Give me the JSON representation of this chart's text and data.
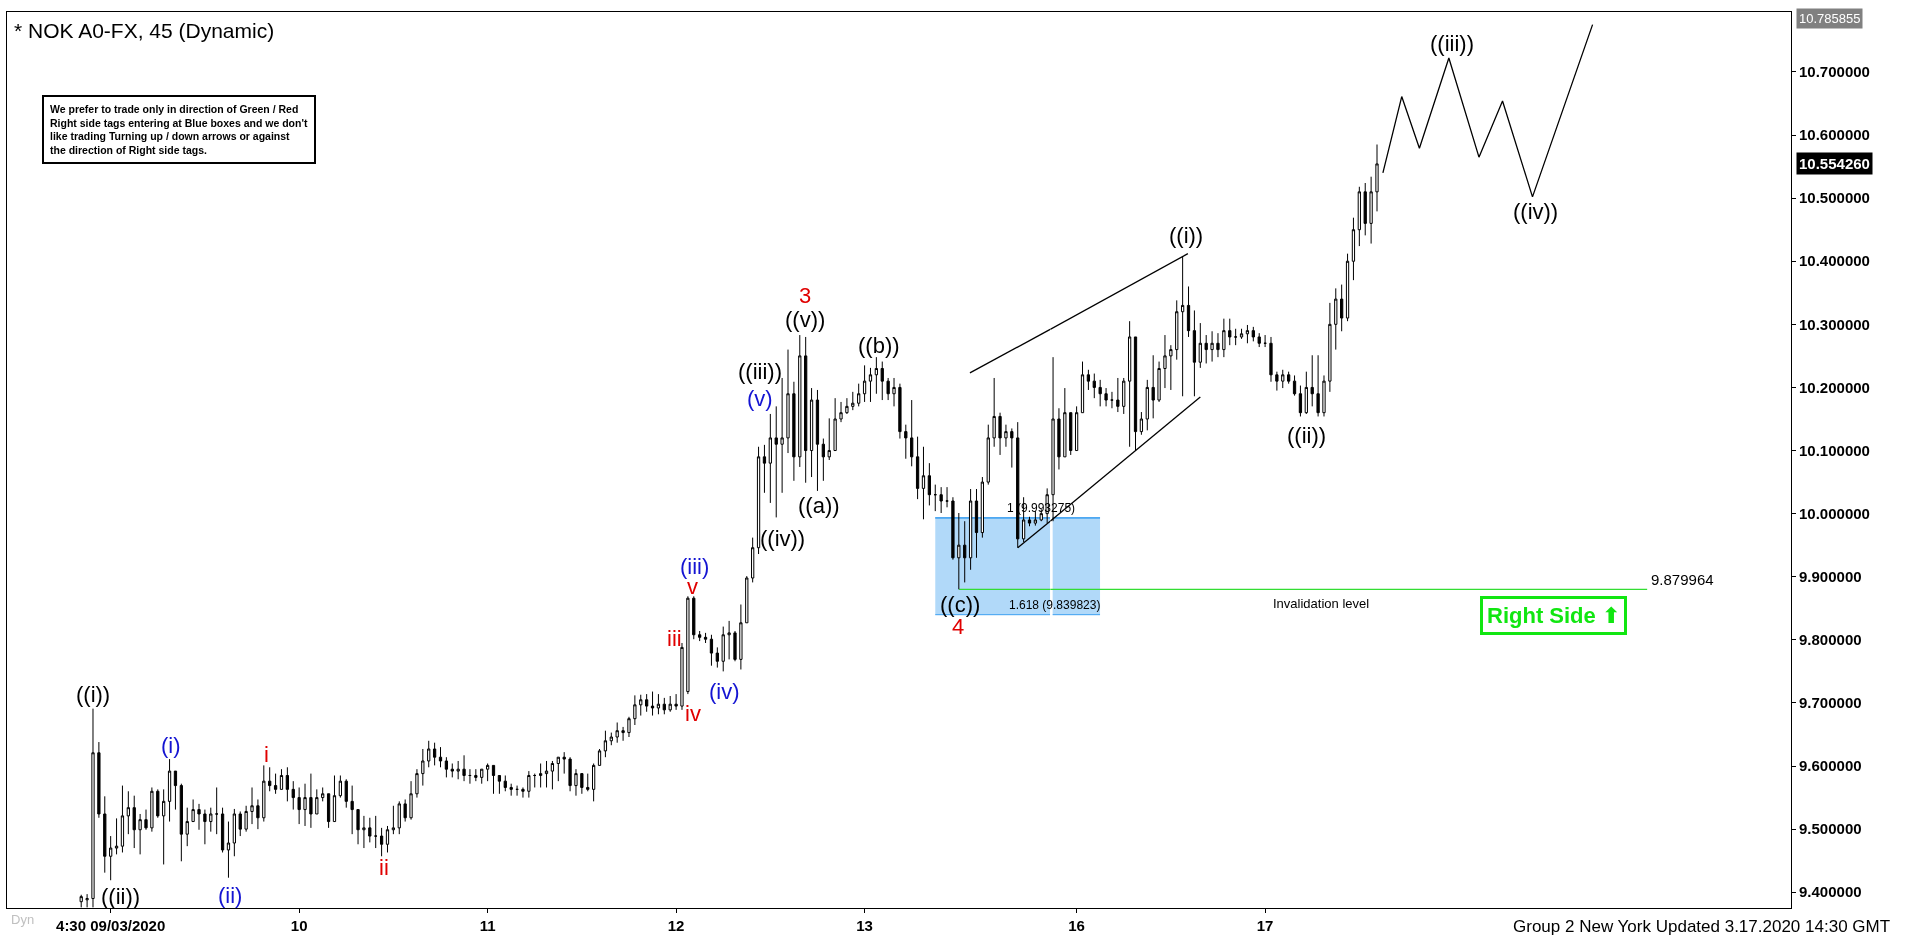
{
  "chart_data": [
    {
      "type": "candlestick",
      "title": "* NOK A0-FX, 45 (Dynamic)",
      "color": "#000000",
      "tick_labels": "x",
      "x": [
        "2020-03-09T00:45",
        "2020-03-09T01:30",
        "2020-03-09T02:15",
        "2020-03-09T03:00",
        "2020-03-09T03:45",
        "2020-03-09T04:30",
        "2020-03-09T05:15",
        "2020-03-09T06:00",
        "2020-03-09T06:45",
        "2020-03-09T07:30",
        "2020-03-09T08:15",
        "2020-03-09T09:00",
        "2020-03-09T09:45",
        "2020-03-09T10:30",
        "2020-03-09T11:15",
        "2020-03-09T12:00",
        "2020-03-09T12:45",
        "2020-03-09T13:30",
        "2020-03-09T14:15",
        "2020-03-09T15:00",
        "2020-03-09T15:45",
        "2020-03-09T16:30",
        "2020-03-09T17:15",
        "2020-03-09T18:00",
        "2020-03-09T18:45",
        "2020-03-09T19:30",
        "2020-03-09T20:15",
        "2020-03-09T21:00",
        "2020-03-09T21:45",
        "2020-03-09T22:30",
        "2020-03-09T23:15",
        "2020-03-10T00:00",
        "2020-03-10T00:45",
        "2020-03-10T01:30",
        "2020-03-10T02:15",
        "2020-03-10T03:00",
        "2020-03-10T03:45",
        "2020-03-10T04:30",
        "2020-03-10T05:15",
        "2020-03-10T06:00",
        "2020-03-10T06:45",
        "2020-03-10T07:30",
        "2020-03-10T08:15",
        "2020-03-10T09:00",
        "2020-03-10T09:45",
        "2020-03-10T10:30",
        "2020-03-10T11:15",
        "2020-03-10T12:00",
        "2020-03-10T12:45",
        "2020-03-10T13:30",
        "2020-03-10T14:15",
        "2020-03-10T15:00",
        "2020-03-10T15:45",
        "2020-03-10T16:30",
        "2020-03-10T17:15",
        "2020-03-10T18:00",
        "2020-03-10T18:45",
        "2020-03-10T19:30",
        "2020-03-10T20:15",
        "2020-03-10T21:00",
        "2020-03-10T21:45",
        "2020-03-10T22:30",
        "2020-03-10T23:15",
        "2020-03-11T00:00",
        "2020-03-11T00:45",
        "2020-03-11T01:30",
        "2020-03-11T02:15",
        "2020-03-11T03:00",
        "2020-03-11T03:45",
        "2020-03-11T04:30",
        "2020-03-11T05:15",
        "2020-03-11T06:00",
        "2020-03-11T06:45",
        "2020-03-11T07:30",
        "2020-03-11T08:15",
        "2020-03-11T09:00",
        "2020-03-11T09:45",
        "2020-03-11T10:30",
        "2020-03-11T11:15",
        "2020-03-11T12:00",
        "2020-03-11T12:45",
        "2020-03-11T13:30",
        "2020-03-11T14:15",
        "2020-03-11T15:00",
        "2020-03-11T15:45",
        "2020-03-11T16:30",
        "2020-03-11T17:15",
        "2020-03-11T18:00",
        "2020-03-11T18:45",
        "2020-03-11T19:30",
        "2020-03-11T20:15",
        "2020-03-11T21:00",
        "2020-03-11T21:45",
        "2020-03-11T22:30",
        "2020-03-11T23:15",
        "2020-03-12T00:00",
        "2020-03-12T00:45",
        "2020-03-12T01:30",
        "2020-03-12T02:15",
        "2020-03-12T03:00",
        "2020-03-12T03:45",
        "2020-03-12T04:30",
        "2020-03-12T05:15",
        "2020-03-12T06:00",
        "2020-03-12T06:45",
        "2020-03-12T07:30",
        "2020-03-12T08:15",
        "2020-03-12T09:00",
        "2020-03-12T09:45",
        "2020-03-12T10:30",
        "2020-03-12T11:15",
        "2020-03-12T12:00",
        "2020-03-12T12:45",
        "2020-03-12T13:30",
        "2020-03-12T14:15",
        "2020-03-12T15:00",
        "2020-03-12T15:45",
        "2020-03-12T16:30",
        "2020-03-12T17:15",
        "2020-03-12T18:00",
        "2020-03-12T18:45",
        "2020-03-12T19:30",
        "2020-03-12T20:15",
        "2020-03-12T21:00",
        "2020-03-12T21:45",
        "2020-03-12T22:30",
        "2020-03-12T23:15",
        "2020-03-13T00:00",
        "2020-03-13T00:45",
        "2020-03-13T01:30",
        "2020-03-13T02:15",
        "2020-03-13T03:00",
        "2020-03-13T03:45",
        "2020-03-13T04:30",
        "2020-03-13T05:15",
        "2020-03-13T06:00",
        "2020-03-13T06:45",
        "2020-03-13T07:30",
        "2020-03-13T08:15",
        "2020-03-13T09:00",
        "2020-03-13T09:45",
        "2020-03-13T10:30",
        "2020-03-13T11:15",
        "2020-03-13T12:00",
        "2020-03-13T12:45",
        "2020-03-13T13:30",
        "2020-03-13T14:15",
        "2020-03-13T15:00",
        "2020-03-13T15:45",
        "2020-03-13T16:30",
        "2020-03-13T17:15",
        "2020-03-13T18:00",
        "2020-03-13T18:45",
        "2020-03-13T19:30",
        "2020-03-13T20:15",
        "2020-03-13T21:00",
        "2020-03-13T21:45",
        "2020-03-13T22:30",
        "2020-03-13T23:15",
        "2020-03-14T00:00",
        "2020-03-14T00:45",
        "2020-03-14T01:30",
        "2020-03-14T02:15",
        "2020-03-14T03:00",
        "2020-03-14T03:45"
      ],
      "ohlc": [
        [
          9.385,
          9.396,
          9.376,
          9.393
        ],
        [
          9.388,
          9.397,
          9.376,
          9.39
        ],
        [
          9.39,
          9.691,
          9.376,
          9.621
        ],
        [
          9.621,
          9.638,
          9.518,
          9.524
        ],
        [
          9.524,
          9.552,
          9.431,
          9.457
        ],
        [
          9.457,
          9.489,
          9.419,
          9.47
        ],
        [
          9.47,
          9.517,
          9.46,
          9.473
        ],
        [
          9.473,
          9.569,
          9.463,
          9.521
        ],
        [
          9.521,
          9.56,
          9.492,
          9.534
        ],
        [
          9.534,
          9.553,
          9.47,
          9.499
        ],
        [
          9.499,
          9.524,
          9.46,
          9.515
        ],
        [
          9.515,
          9.531,
          9.499,
          9.502
        ],
        [
          9.502,
          9.566,
          9.496,
          9.56
        ],
        [
          9.56,
          9.563,
          9.518,
          9.521
        ],
        [
          9.521,
          9.563,
          9.444,
          9.544
        ],
        [
          9.544,
          9.611,
          9.512,
          9.592
        ],
        [
          9.592,
          9.592,
          9.531,
          9.569
        ],
        [
          9.569,
          9.572,
          9.449,
          9.492
        ],
        [
          9.492,
          9.534,
          9.473,
          9.512
        ],
        [
          9.512,
          9.547,
          9.512,
          9.531
        ],
        [
          9.531,
          9.54,
          9.499,
          9.524
        ],
        [
          9.524,
          9.531,
          9.476,
          9.512
        ],
        [
          9.512,
          9.534,
          9.496,
          9.524
        ],
        [
          9.524,
          9.566,
          9.492,
          9.524
        ],
        [
          9.524,
          9.534,
          9.463,
          9.467
        ],
        [
          9.467,
          9.512,
          9.423,
          9.478
        ],
        [
          9.478,
          9.532,
          9.457,
          9.524
        ],
        [
          9.524,
          9.528,
          9.489,
          9.5
        ],
        [
          9.5,
          9.537,
          9.496,
          9.528
        ],
        [
          9.528,
          9.566,
          9.508,
          9.537
        ],
        [
          9.537,
          9.547,
          9.5,
          9.518
        ],
        [
          9.518,
          9.601,
          9.512,
          9.576
        ],
        [
          9.576,
          9.598,
          9.56,
          9.569
        ],
        [
          9.569,
          9.588,
          9.556,
          9.563
        ],
        [
          9.563,
          9.595,
          9.563,
          9.585
        ],
        [
          9.585,
          9.598,
          9.544,
          9.563
        ],
        [
          9.563,
          9.576,
          9.531,
          9.55
        ],
        [
          9.55,
          9.566,
          9.508,
          9.531
        ],
        [
          9.531,
          9.572,
          9.505,
          9.55
        ],
        [
          9.55,
          9.588,
          9.502,
          9.524
        ],
        [
          9.524,
          9.563,
          9.524,
          9.55
        ],
        [
          9.55,
          9.566,
          9.544,
          9.556
        ],
        [
          9.556,
          9.556,
          9.502,
          9.512
        ],
        [
          9.512,
          9.585,
          9.512,
          9.553
        ],
        [
          9.553,
          9.585,
          9.55,
          9.576
        ],
        [
          9.576,
          9.579,
          9.534,
          9.544
        ],
        [
          9.544,
          9.569,
          9.492,
          9.531
        ],
        [
          9.531,
          9.531,
          9.476,
          9.499
        ],
        [
          9.499,
          9.521,
          9.47,
          9.502
        ],
        [
          9.502,
          9.518,
          9.479,
          9.489
        ],
        [
          9.489,
          9.521,
          9.47,
          9.489
        ],
        [
          9.489,
          9.502,
          9.457,
          9.476
        ],
        [
          9.476,
          9.505,
          9.463,
          9.499
        ],
        [
          9.499,
          9.537,
          9.492,
          9.502
        ],
        [
          9.502,
          9.544,
          9.492,
          9.54
        ],
        [
          9.54,
          9.547,
          9.512,
          9.518
        ],
        [
          9.518,
          9.576,
          9.515,
          9.556
        ],
        [
          9.556,
          9.595,
          9.55,
          9.588
        ],
        [
          9.588,
          9.627,
          9.569,
          9.608
        ],
        [
          9.608,
          9.64,
          9.598,
          9.627
        ],
        [
          9.627,
          9.637,
          9.601,
          9.614
        ],
        [
          9.614,
          9.63,
          9.598,
          9.608
        ],
        [
          9.608,
          9.614,
          9.582,
          9.595
        ],
        [
          9.595,
          9.604,
          9.582,
          9.592
        ],
        [
          9.592,
          9.608,
          9.579,
          9.595
        ],
        [
          9.595,
          9.617,
          9.576,
          9.585
        ],
        [
          9.585,
          9.595,
          9.572,
          9.585
        ],
        [
          9.585,
          9.595,
          9.576,
          9.582
        ],
        [
          9.582,
          9.595,
          9.572,
          9.595
        ],
        [
          9.595,
          9.604,
          9.576,
          9.601
        ],
        [
          9.601,
          9.601,
          9.556,
          9.585
        ],
        [
          9.585,
          9.585,
          9.556,
          9.576
        ],
        [
          9.576,
          9.585,
          9.56,
          9.566
        ],
        [
          9.566,
          9.572,
          9.553,
          9.563
        ],
        [
          9.563,
          9.569,
          9.553,
          9.563
        ],
        [
          9.563,
          9.566,
          9.55,
          9.56
        ],
        [
          9.56,
          9.592,
          9.55,
          9.585
        ],
        [
          9.585,
          9.588,
          9.566,
          9.585
        ],
        [
          9.585,
          9.604,
          9.566,
          9.588
        ],
        [
          9.588,
          9.608,
          9.566,
          9.592
        ],
        [
          9.592,
          9.608,
          9.563,
          9.604
        ],
        [
          9.604,
          9.614,
          9.576,
          9.614
        ],
        [
          9.614,
          9.622,
          9.588,
          9.611
        ],
        [
          9.611,
          9.614,
          9.56,
          9.569
        ],
        [
          9.569,
          9.595,
          9.553,
          9.588
        ],
        [
          9.588,
          9.588,
          9.556,
          9.566
        ],
        [
          9.566,
          9.588,
          9.56,
          9.563
        ],
        [
          9.563,
          9.604,
          9.544,
          9.601
        ],
        [
          9.601,
          9.627,
          9.601,
          9.624
        ],
        [
          9.624,
          9.656,
          9.614,
          9.64
        ],
        [
          9.64,
          9.653,
          9.633,
          9.646
        ],
        [
          9.646,
          9.669,
          9.637,
          9.656
        ],
        [
          9.656,
          9.662,
          9.64,
          9.653
        ],
        [
          9.653,
          9.678,
          9.646,
          9.675
        ],
        [
          9.675,
          9.712,
          9.665,
          9.697
        ],
        [
          9.697,
          9.713,
          9.68,
          9.705
        ],
        [
          9.705,
          9.714,
          9.686,
          9.695
        ],
        [
          9.695,
          9.718,
          9.68,
          9.692
        ],
        [
          9.692,
          9.714,
          9.682,
          9.698
        ],
        [
          9.698,
          9.708,
          9.682,
          9.689
        ],
        [
          9.689,
          9.711,
          9.686,
          9.698
        ],
        [
          9.698,
          9.714,
          9.689,
          9.695
        ],
        [
          9.695,
          9.795,
          9.689,
          9.788
        ],
        [
          9.718,
          9.869,
          9.714,
          9.866
        ],
        [
          9.866,
          9.869,
          9.801,
          9.808
        ],
        [
          9.808,
          9.814,
          9.798,
          9.804
        ],
        [
          9.804,
          9.811,
          9.795,
          9.801
        ],
        [
          9.801,
          9.808,
          9.759,
          9.779
        ],
        [
          9.779,
          9.788,
          9.756,
          9.766
        ],
        [
          9.766,
          9.821,
          9.75,
          9.808
        ],
        [
          9.808,
          9.83,
          9.769,
          9.811
        ],
        [
          9.811,
          9.814,
          9.766,
          9.769
        ],
        [
          9.769,
          9.856,
          9.753,
          9.827
        ],
        [
          9.827,
          9.901,
          9.827,
          9.898
        ],
        [
          9.898,
          9.962,
          9.891,
          9.946
        ],
        [
          9.946,
          10.106,
          9.936,
          10.09
        ],
        [
          10.09,
          10.109,
          10.033,
          10.08
        ],
        [
          10.08,
          10.158,
          10.017,
          10.12
        ],
        [
          10.12,
          10.17,
          9.994,
          10.11
        ],
        [
          10.11,
          10.215,
          10.033,
          10.12
        ],
        [
          10.12,
          10.26,
          10.096,
          10.19
        ],
        [
          10.19,
          10.209,
          10.052,
          10.09
        ],
        [
          10.09,
          10.283,
          10.074,
          10.25
        ],
        [
          10.25,
          10.28,
          10.049,
          10.1
        ],
        [
          10.1,
          10.199,
          10.058,
          10.18
        ],
        [
          10.18,
          10.196,
          10.036,
          10.11
        ],
        [
          10.11,
          10.119,
          10.052,
          10.09
        ],
        [
          10.09,
          10.151,
          10.085,
          10.1
        ],
        [
          10.1,
          10.183,
          10.1,
          10.15
        ],
        [
          10.15,
          10.177,
          10.145,
          10.16
        ],
        [
          10.16,
          10.183,
          10.158,
          10.17
        ],
        [
          10.17,
          10.193,
          10.164,
          10.175
        ],
        [
          10.175,
          10.206,
          10.17,
          10.19
        ],
        [
          10.19,
          10.235,
          10.177,
          10.21
        ],
        [
          10.21,
          10.231,
          10.177,
          10.22
        ],
        [
          10.22,
          10.248,
          10.19,
          10.23
        ],
        [
          10.23,
          10.241,
          10.18,
          10.21
        ],
        [
          10.21,
          10.215,
          10.18,
          10.19
        ],
        [
          10.19,
          10.215,
          10.17,
          10.2
        ],
        [
          10.2,
          10.206,
          10.119,
          10.13
        ],
        [
          10.13,
          10.141,
          10.087,
          10.12
        ],
        [
          10.12,
          10.18,
          10.075,
          10.09
        ],
        [
          10.09,
          10.122,
          10.023,
          10.04
        ],
        [
          10.04,
          10.106,
          9.991,
          10.06
        ],
        [
          10.06,
          10.08,
          10.013,
          10.03
        ],
        [
          10.03,
          10.046,
          10.004,
          10.03
        ],
        [
          10.03,
          10.042,
          10.001,
          10.02
        ],
        [
          10.02,
          10.042,
          10.01,
          10.02
        ],
        [
          10.02,
          10.026,
          9.927,
          9.93
        ],
        [
          9.93,
          10.001,
          9.88,
          9.95
        ],
        [
          9.95,
          9.988,
          9.891,
          9.93
        ],
        [
          9.93,
          10.039,
          9.911,
          10.02
        ],
        [
          10.02,
          10.039,
          9.93,
          9.97
        ],
        [
          9.97,
          10.058,
          9.962,
          10.05
        ],
        [
          10.05,
          10.141,
          10.046,
          10.12
        ],
        [
          10.12,
          10.215,
          10.106,
          10.154
        ],
        [
          10.154,
          10.16,
          10.093,
          10.12
        ],
        [
          10.12,
          10.141,
          10.106,
          10.13
        ],
        [
          10.13,
          10.135,
          10.073,
          10.12
        ],
        [
          10.12,
          10.145,
          9.946,
          9.96
        ],
        [
          9.96,
          10.026,
          9.955,
          9.99
        ],
        [
          9.99,
          9.995,
          9.98,
          9.985
        ],
        [
          9.985,
          10.004,
          9.981,
          9.99
        ],
        [
          9.99,
          10.007,
          9.988,
          10.0
        ],
        [
          10.0,
          10.04,
          9.985,
          10.03
        ]
      ],
      "series": [
        {
          "type": "line",
          "color": "#3c9ff0",
          "x": [
            "2020-03-13T13:30",
            "2020-03-14T04:08"
          ],
          "values": [
            9.993275,
            9.993275
          ],
          "lower": [
            9.839823,
            9.839823
          ],
          "upper": [
            9.993275,
            9.993275
          ]
        },
        {
          "type": "line",
          "color": "#33dd33",
          "x": [
            "2020-03-13T16:32",
            "2020-03-14T04:08"
          ],
          "values": [
            9.879964,
            9.879964
          ]
        },
        {
          "type": "line",
          "color": "#000000",
          "x": [
            "2020-03-13T17:55",
            "2020-03-14T04:08"
          ],
          "values": [
            10.223,
            10.292
          ]
        },
        {
          "type": "line",
          "color": "#000000",
          "x": [
            "2020-03-14T00:00",
            "2020-03-14T04:08"
          ],
          "values": [
            9.946,
            9.988
          ]
        }
      ],
      "xlim": [
        "2020-03-08T15:18",
        "2020-03-14T04:08"
      ],
      "ylim": [
        9.375,
        10.795
      ],
      "xticks": [
        {
          "value": "2020-03-09T04:30",
          "label": "4:30 09/03/2020"
        },
        {
          "value": "2020-03-10T04:30",
          "label": "10"
        },
        {
          "value": "2020-03-11T04:30",
          "label": "11"
        },
        {
          "value": "2020-03-12T04:30",
          "label": "12"
        },
        {
          "value": "2020-03-13T04:30",
          "label": "13"
        }
      ],
      "annotations": [
        {
          "text": "((i))",
          "x": "2020-03-09T02:15",
          "y": 9.691
        },
        {
          "text": "((ii))",
          "x": "2020-03-09T04:30",
          "y": 9.419
        },
        {
          "text": "(i)",
          "x": "2020-03-09T12:00",
          "y": 9.611
        },
        {
          "text": "(ii)",
          "x": "2020-03-09T19:30",
          "y": 9.423
        },
        {
          "text": "i",
          "x": "2020-03-10T00:00",
          "y": 9.601
        },
        {
          "text": "ii",
          "x": "2020-03-10T15:00",
          "y": 9.457
        },
        {
          "text": "iii",
          "x": "2020-03-12T05:15",
          "y": 9.795
        },
        {
          "text": "iv",
          "x": "2020-03-12T06:00",
          "y": 9.714
        },
        {
          "text": "v",
          "x": "2020-03-12T06:00",
          "y": 9.869
        },
        {
          "text": "(iii)",
          "x": "2020-03-12T06:00",
          "y": 9.869
        },
        {
          "text": "(iv)",
          "x": "2020-03-12T10:30",
          "y": 9.75
        },
        {
          "text": "(v)",
          "x": "2020-03-12T18:00",
          "y": 10.215
        },
        {
          "text": "((iii))",
          "x": "2020-03-12T18:00",
          "y": 10.215
        },
        {
          "text": "((iv))",
          "x": "2020-03-12T17:15",
          "y": 9.994
        },
        {
          "text": "((v))",
          "x": "2020-03-12T20:15",
          "y": 10.283
        },
        {
          "text": "3",
          "x": "2020-03-12T20:15",
          "y": 10.283
        },
        {
          "text": "((a))",
          "x": "2020-03-12T22:30",
          "y": 10.036
        },
        {
          "text": "((b))",
          "x": "2020-03-13T06:00",
          "y": 10.248
        },
        {
          "text": "((c))",
          "x": "2020-03-13T16:30",
          "y": 9.88
        },
        {
          "text": "4",
          "x": "2020-03-13T16:30",
          "y": 9.88
        },
        {
          "text": "1 (9.993275)",
          "x": "2020-03-14T03:00",
          "y": 9.993275
        },
        "We prefer to trade only in direction of Green / Red\nRight side tags entering at Blue boxes and we don't\nlike trading Turning up / down arrows or against\nthe direction of Right side tags.",
        "Dyn"
      ]
    },
    {
      "type": "candlestick",
      "color": "#000000",
      "x": [
        "2020-03-16T01:30",
        "2020-03-16T02:15",
        "2020-03-16T03:00",
        "2020-03-16T03:45",
        "2020-03-16T04:30",
        "2020-03-16T05:15",
        "2020-03-16T06:00",
        "2020-03-16T06:45",
        "2020-03-16T07:30",
        "2020-03-16T08:15",
        "2020-03-16T09:00",
        "2020-03-16T09:45",
        "2020-03-16T10:30",
        "2020-03-16T11:15",
        "2020-03-16T12:00",
        "2020-03-16T12:45",
        "2020-03-16T13:30",
        "2020-03-16T14:15",
        "2020-03-16T15:00",
        "2020-03-16T15:45",
        "2020-03-16T16:30",
        "2020-03-16T17:15",
        "2020-03-16T18:00",
        "2020-03-16T18:45",
        "2020-03-16T19:30",
        "2020-03-16T20:15",
        "2020-03-16T21:00",
        "2020-03-16T21:45",
        "2020-03-16T22:30",
        "2020-03-16T23:15",
        "2020-03-17T00:00",
        "2020-03-17T00:45",
        "2020-03-17T01:30",
        "2020-03-17T02:15",
        "2020-03-17T03:00",
        "2020-03-17T03:45",
        "2020-03-17T04:30",
        "2020-03-17T05:15",
        "2020-03-17T06:00",
        "2020-03-17T06:45",
        "2020-03-17T07:30",
        "2020-03-17T08:15",
        "2020-03-17T09:00",
        "2020-03-17T09:45",
        "2020-03-17T10:30",
        "2020-03-17T11:15",
        "2020-03-17T12:00",
        "2020-03-17T12:45",
        "2020-03-17T13:30",
        "2020-03-17T14:15",
        "2020-03-17T15:00",
        "2020-03-17T15:45",
        "2020-03-17T16:30",
        "2020-03-17T17:15",
        "2020-03-17T18:00",
        "2020-03-17T18:45"
      ],
      "ohlc": [
        [
          10.03,
          10.248,
          9.988,
          10.15
        ],
        [
          10.15,
          10.167,
          10.07,
          10.09
        ],
        [
          10.09,
          10.199,
          10.09,
          10.16
        ],
        [
          10.16,
          10.16,
          10.093,
          10.1
        ],
        [
          10.1,
          10.17,
          10.1,
          10.16
        ],
        [
          10.16,
          10.241,
          10.16,
          10.22
        ],
        [
          10.22,
          10.228,
          10.196,
          10.21
        ],
        [
          10.21,
          10.222,
          10.183,
          10.2
        ],
        [
          10.2,
          10.212,
          10.17,
          10.19
        ],
        [
          10.19,
          10.199,
          10.17,
          10.18
        ],
        [
          10.18,
          10.193,
          10.167,
          10.18
        ],
        [
          10.18,
          10.215,
          10.161,
          10.17
        ],
        [
          10.17,
          10.215,
          10.158,
          10.21
        ],
        [
          10.21,
          10.305,
          10.106,
          10.28
        ],
        [
          10.28,
          10.28,
          10.1,
          10.13
        ],
        [
          10.13,
          10.161,
          10.125,
          10.15
        ],
        [
          10.15,
          10.212,
          10.132,
          10.2
        ],
        [
          10.2,
          10.251,
          10.151,
          10.18
        ],
        [
          10.18,
          10.241,
          10.177,
          10.23
        ],
        [
          10.23,
          10.283,
          10.199,
          10.25
        ],
        [
          10.25,
          10.267,
          10.196,
          10.26
        ],
        [
          10.26,
          10.338,
          10.244,
          10.32
        ],
        [
          10.32,
          10.408,
          10.186,
          10.33
        ],
        [
          10.33,
          10.36,
          10.28,
          10.29
        ],
        [
          10.29,
          10.322,
          10.186,
          10.24
        ],
        [
          10.24,
          10.302,
          10.231,
          10.27
        ],
        [
          10.27,
          10.283,
          10.238,
          10.26
        ],
        [
          10.26,
          10.289,
          10.241,
          10.27
        ],
        [
          10.27,
          10.286,
          10.248,
          10.26
        ],
        [
          10.26,
          10.309,
          10.248,
          10.29
        ],
        [
          10.29,
          10.309,
          10.267,
          10.28
        ],
        [
          10.28,
          10.293,
          10.267,
          10.28
        ],
        [
          10.28,
          10.293,
          10.277,
          10.285
        ],
        [
          10.285,
          10.299,
          10.27,
          10.29
        ],
        [
          10.29,
          10.296,
          10.273,
          10.28
        ],
        [
          10.28,
          10.286,
          10.264,
          10.27
        ],
        [
          10.27,
          10.283,
          10.264,
          10.27
        ],
        [
          10.27,
          10.28,
          10.209,
          10.22
        ],
        [
          10.22,
          10.225,
          10.195,
          10.21
        ],
        [
          10.21,
          10.228,
          10.199,
          10.22
        ],
        [
          10.22,
          10.225,
          10.206,
          10.21
        ],
        [
          10.21,
          10.219,
          10.187,
          10.19
        ],
        [
          10.19,
          10.203,
          10.154,
          10.16
        ],
        [
          10.16,
          10.225,
          10.158,
          10.2
        ],
        [
          10.2,
          10.251,
          10.17,
          10.19
        ],
        [
          10.19,
          10.251,
          10.154,
          10.16
        ],
        [
          10.16,
          10.219,
          10.154,
          10.21
        ],
        [
          10.21,
          10.334,
          10.193,
          10.3
        ],
        [
          10.3,
          10.357,
          10.26,
          10.34
        ],
        [
          10.34,
          10.363,
          10.289,
          10.31
        ],
        [
          10.31,
          10.412,
          10.305,
          10.4
        ],
        [
          10.4,
          10.469,
          10.37,
          10.45
        ],
        [
          10.45,
          10.518,
          10.424,
          10.51
        ],
        [
          10.51,
          10.524,
          10.441,
          10.46
        ],
        [
          10.46,
          10.534,
          10.428,
          10.51
        ],
        [
          10.51,
          10.585,
          10.479,
          10.55426
        ]
      ],
      "series": [
        {
          "type": "line",
          "color": "#3c9ff0",
          "x": [
            "2020-03-16T01:27",
            "2020-03-16T07:29"
          ],
          "values": [
            9.993275,
            9.993275
          ],
          "lower": [
            9.839823,
            9.839823
          ],
          "upper": [
            9.993275,
            9.993275
          ]
        },
        {
          "type": "line",
          "color": "#33dd33",
          "x": [
            "2020-03-16T01:08",
            "2020-03-19T05:09"
          ],
          "values": [
            9.879964,
            9.879964
          ]
        },
        {
          "type": "line",
          "color": "#000000",
          "x": [
            "2020-03-16T01:08",
            "2020-03-16T18:40"
          ],
          "values": [
            10.292,
            10.412
          ]
        },
        {
          "type": "line",
          "color": "#000000",
          "x": [
            "2020-03-16T01:08",
            "2020-03-16T20:15"
          ],
          "values": [
            9.988,
            10.185
          ]
        },
        {
          "type": "line",
          "color": "#000000",
          "x": [
            "2020-03-17T19:30",
            "2020-03-17T21:54",
            "2020-03-18T00:09",
            "2020-03-18T03:54",
            "2020-03-18T07:44",
            "2020-03-18T10:44",
            "2020-03-18T14:33",
            "2020-03-18T22:12"
          ],
          "values": [
            10.54,
            10.661,
            10.579,
            10.722,
            10.565,
            10.654,
            10.502,
            10.775
          ]
        }
      ],
      "xlim": [
        "2020-03-16T01:08",
        "2020-03-19T23:28"
      ],
      "ylim": [
        9.375,
        10.795
      ],
      "xticks": [
        {
          "value": "2020-03-16T04:30",
          "label": "16"
        },
        {
          "value": "2020-03-17T04:30",
          "label": "17"
        }
      ],
      "yticks": [
        {
          "value": 9.4,
          "label": "9.400000"
        },
        {
          "value": 9.5,
          "label": "9.500000"
        },
        {
          "value": 9.6,
          "label": "9.600000"
        },
        {
          "value": 9.7,
          "label": "9.700000"
        },
        {
          "value": 9.8,
          "label": "9.800000"
        },
        {
          "value": 9.9,
          "label": "9.900000"
        },
        {
          "value": 10.0,
          "label": "10.000000"
        },
        {
          "value": 10.1,
          "label": "10.100000"
        },
        {
          "value": 10.2,
          "label": "10.200000"
        },
        {
          "value": 10.3,
          "label": "10.300000"
        },
        {
          "value": 10.4,
          "label": "10.400000"
        },
        {
          "value": 10.5,
          "label": "10.500000"
        },
        {
          "value": 10.6,
          "label": "10.600000"
        },
        {
          "value": 10.7,
          "label": "10.700000"
        }
      ],
      "annotations": [
        {
          "text": "((i))",
          "x": "2020-03-16T18:00",
          "y": 10.408
        },
        {
          "text": "((ii))",
          "x": "2020-03-17T09:00",
          "y": 10.154
        },
        {
          "text": "((iii))",
          "x": "2020-03-18T03:54",
          "y": 10.722
        },
        {
          "text": "((iv))",
          "x": "2020-03-18T14:33",
          "y": 10.502
        },
        {
          "text": "1.618 (9.839823)",
          "x": "2020-03-16T01:30",
          "y": 9.839823
        },
        {
          "text": "Invalidation level",
          "x": "2020-03-17T11:15",
          "y": 9.879964
        },
        {
          "text": "9.879964",
          "x": "2020-03-19T05:09",
          "y": 9.879964
        },
        "10.554260",
        "10.785855",
        "Right Side ⬆",
        "Group 2 New York Updated 3.17.2020 14:30 GMT"
      ]
    }
  ]
}
